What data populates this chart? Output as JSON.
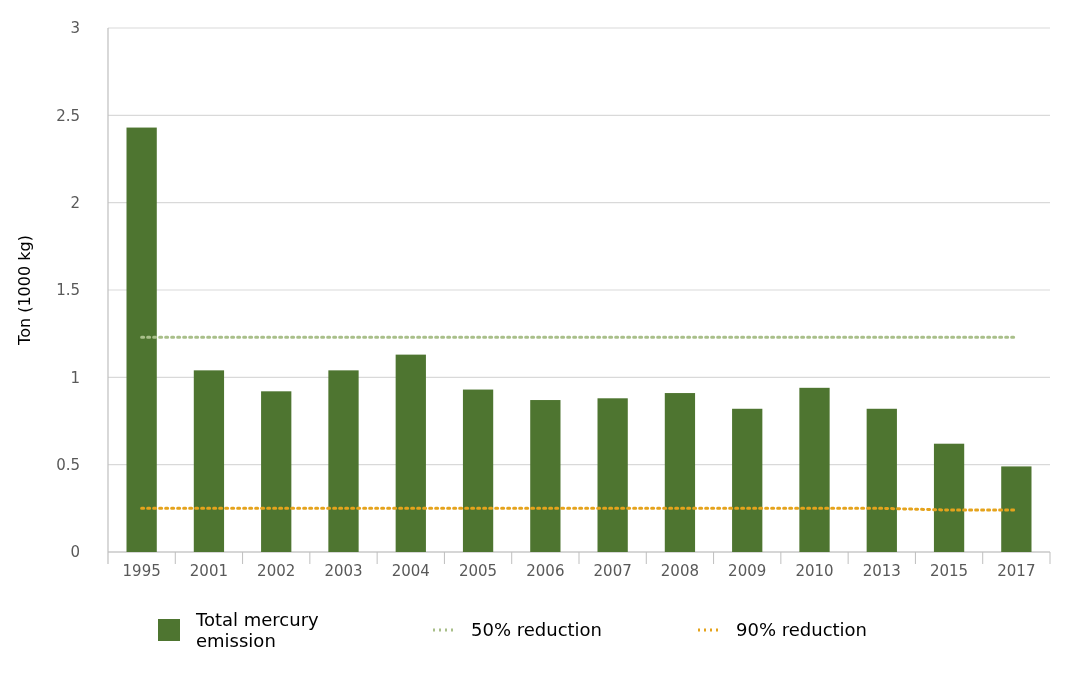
{
  "chart_data": {
    "type": "bar",
    "ylabel": "Ton (1000 kg)",
    "categories": [
      "1995",
      "2001",
      "2002",
      "2003",
      "2004",
      "2005",
      "2006",
      "2007",
      "2008",
      "2009",
      "2010",
      "2013",
      "2015",
      "2017"
    ],
    "series": [
      {
        "name": "Total mercury emission",
        "color": "#4e7530",
        "values": [
          2.43,
          1.04,
          0.92,
          1.04,
          1.13,
          0.93,
          0.87,
          0.88,
          0.91,
          0.82,
          0.94,
          0.82,
          0.62,
          0.49
        ]
      },
      {
        "name": "50% reduction",
        "type": "line",
        "color": "#a9bf8a",
        "line_style": "dotted",
        "marker": "none",
        "values": [
          1.23,
          1.23,
          1.23,
          1.23,
          1.23,
          1.23,
          1.23,
          1.23,
          1.23,
          1.23,
          1.23,
          1.23,
          1.23,
          1.23
        ]
      },
      {
        "name": "90% reduction",
        "type": "line",
        "color": "#e5a31c",
        "line_style": "dotted",
        "marker": "none",
        "values": [
          0.25,
          0.25,
          0.25,
          0.25,
          0.25,
          0.25,
          0.25,
          0.25,
          0.25,
          0.25,
          0.25,
          0.25,
          0.24,
          0.24
        ]
      }
    ],
    "ylim": [
      0,
      3
    ],
    "yticks": [
      0,
      0.5,
      1,
      1.5,
      2,
      2.5,
      3
    ],
    "grid": "y",
    "legend": "bottom"
  }
}
